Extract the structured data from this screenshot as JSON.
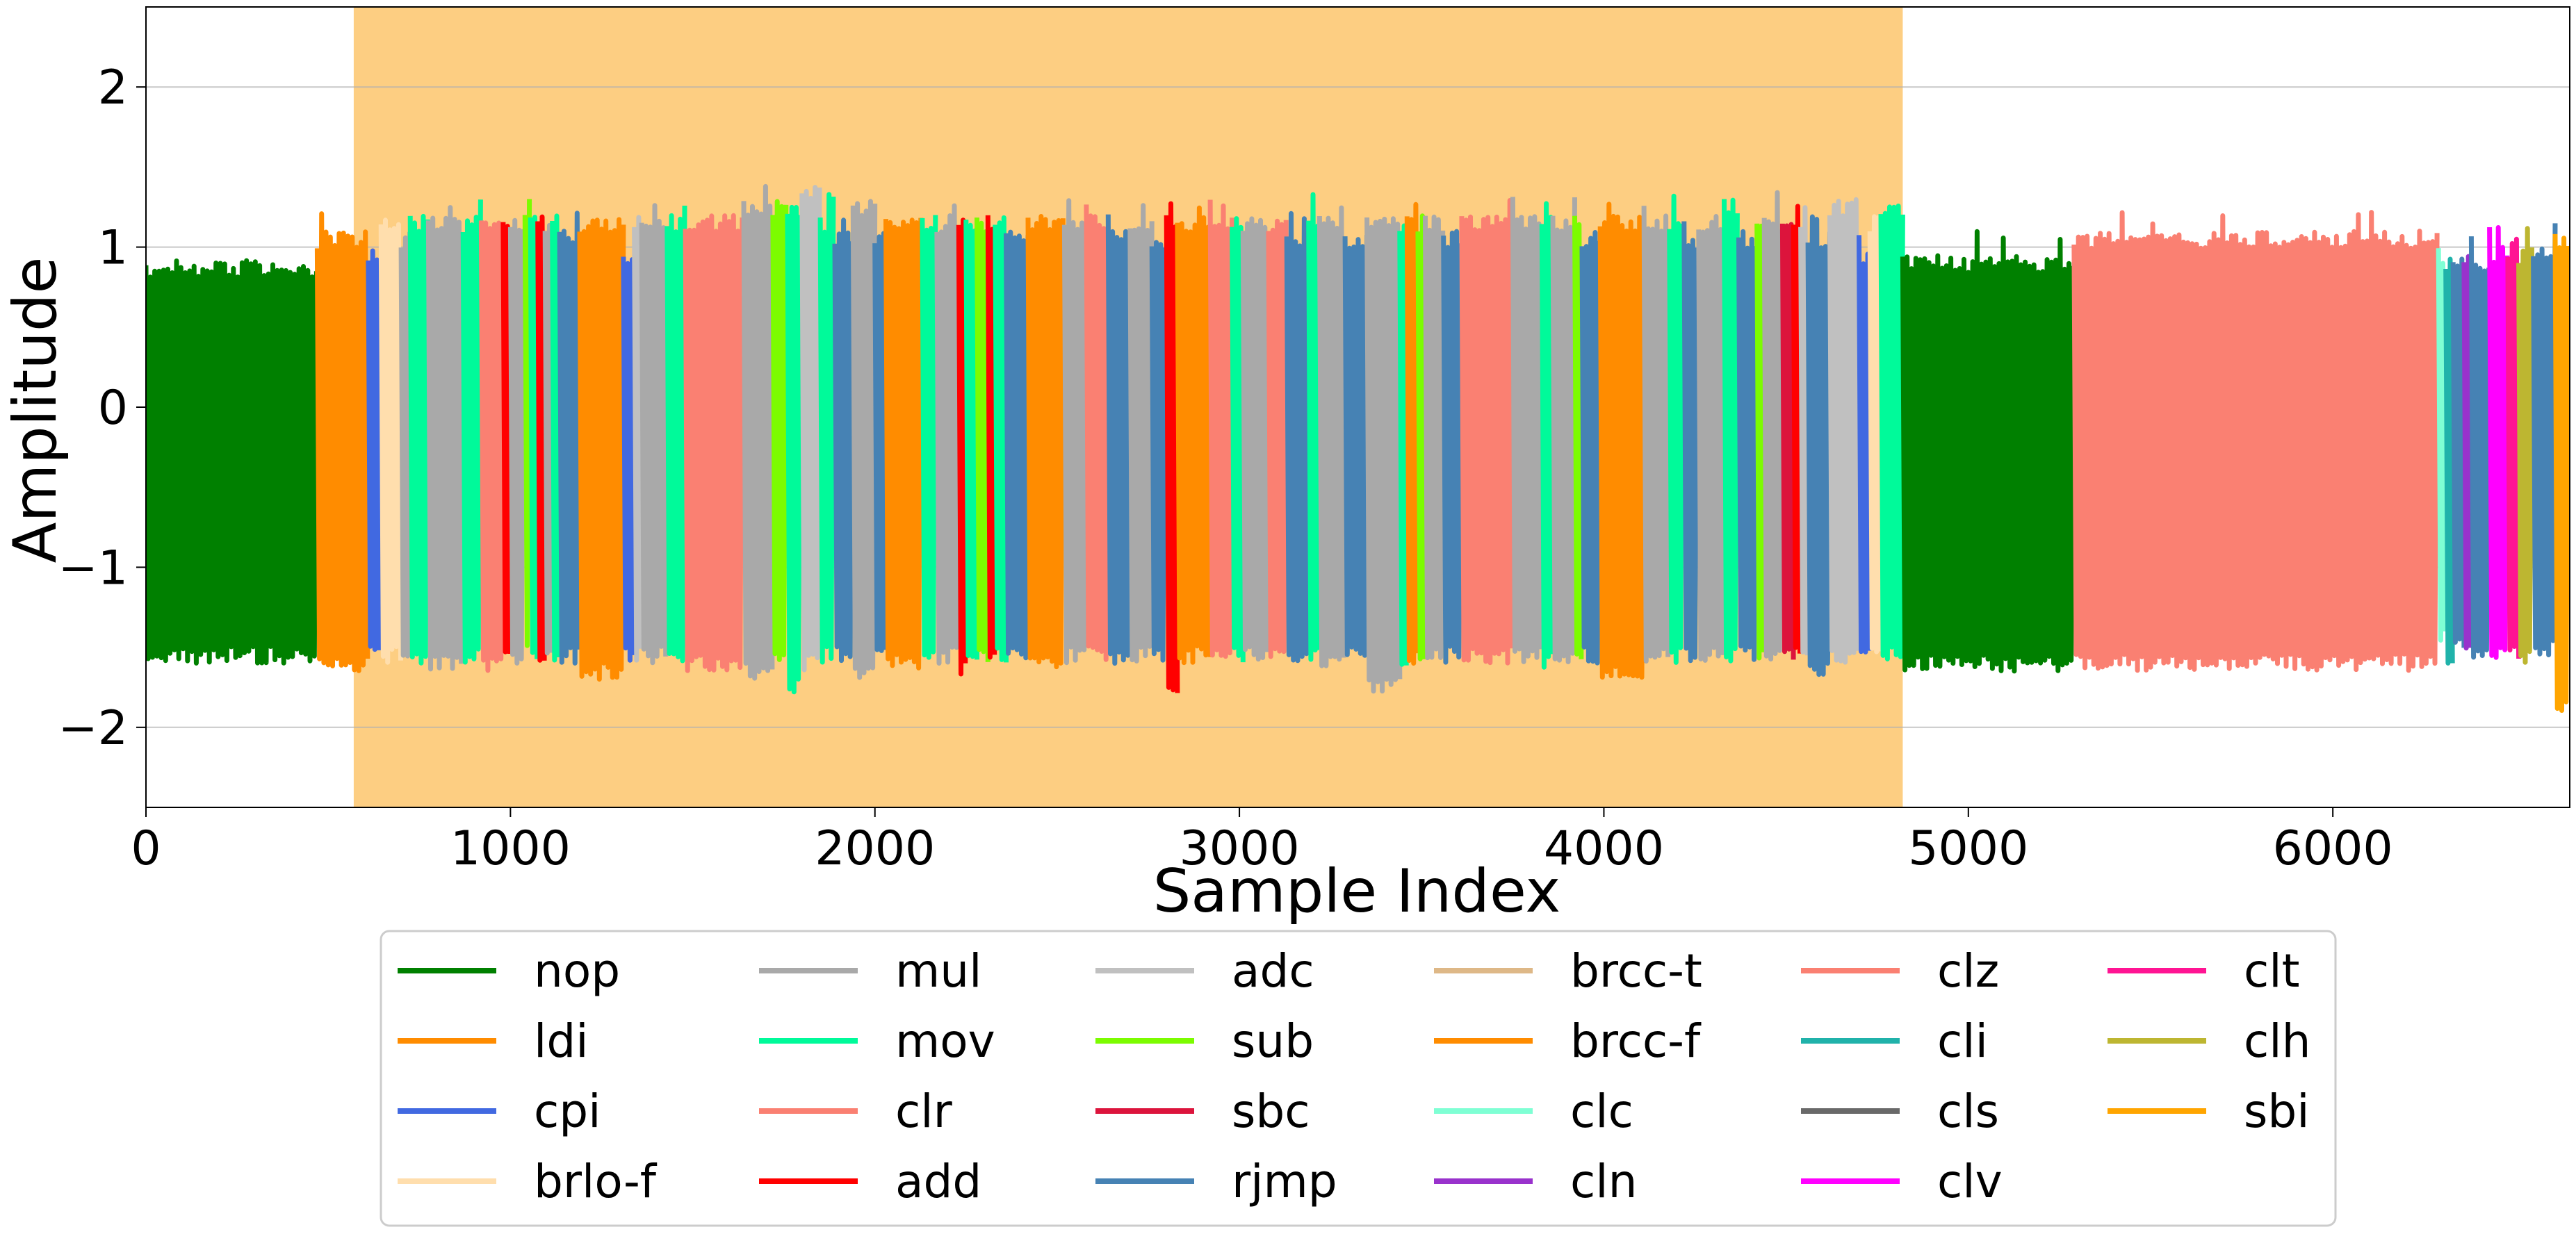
{
  "chart_data": {
    "type": "line",
    "title": "",
    "xlabel": "Sample Index",
    "ylabel": "Amplitude",
    "xlim": [
      0,
      6650
    ],
    "ylim": [
      -2.5,
      2.5
    ],
    "xticks": [
      0,
      1000,
      2000,
      3000,
      4000,
      5000,
      6000
    ],
    "yticks": [
      -2,
      -1,
      0,
      1,
      2
    ],
    "ytick_labels": [
      "−2",
      "−1",
      "0",
      "1",
      "2"
    ],
    "grid": "horizontal",
    "highlight_region": {
      "x_start": 570,
      "x_end": 4820,
      "color": "#FDCE82"
    },
    "legend_placement": "below plot, 6 columns",
    "series": [
      {
        "name": "nop",
        "color": "#008000"
      },
      {
        "name": "ldi",
        "color": "#FF8C00"
      },
      {
        "name": "cpi",
        "color": "#4169E1"
      },
      {
        "name": "brlo-f",
        "color": "#FFDEAD"
      },
      {
        "name": "mul",
        "color": "#A9A9A9"
      },
      {
        "name": "mov",
        "color": "#00FA9A"
      },
      {
        "name": "clr",
        "color": "#FA8072"
      },
      {
        "name": "add",
        "color": "#FF0000"
      },
      {
        "name": "adc",
        "color": "#C0C0C0"
      },
      {
        "name": "sub",
        "color": "#7CFC00"
      },
      {
        "name": "sbc",
        "color": "#DC143C"
      },
      {
        "name": "rjmp",
        "color": "#4682B4"
      },
      {
        "name": "brcc-t",
        "color": "#DEB887"
      },
      {
        "name": "brcc-f",
        "color": "#FF8C00"
      },
      {
        "name": "clc",
        "color": "#7FFFD4"
      },
      {
        "name": "cln",
        "color": "#9932CC"
      },
      {
        "name": "clz",
        "color": "#FA8072"
      },
      {
        "name": "cli",
        "color": "#20B2AA"
      },
      {
        "name": "cls",
        "color": "#696969"
      },
      {
        "name": "clv",
        "color": "#FF00FF"
      },
      {
        "name": "clt",
        "color": "#FF1493"
      },
      {
        "name": "clh",
        "color": "#BDB631"
      },
      {
        "name": "sbi",
        "color": "#FFA500"
      }
    ],
    "segments": [
      {
        "s": "nop",
        "x0": 0,
        "x1": 470,
        "lo": -1.6,
        "hi": 0.92
      },
      {
        "s": "ldi",
        "x0": 470,
        "x1": 610,
        "lo": -1.65,
        "hi": 1.1
      },
      {
        "s": "cpi",
        "x0": 610,
        "x1": 645,
        "lo": -1.6,
        "hi": 1.0
      },
      {
        "s": "brlo-f",
        "x0": 645,
        "x1": 700,
        "lo": -1.6,
        "hi": 1.2
      },
      {
        "s": "mul",
        "x0": 700,
        "x1": 725,
        "lo": -1.6,
        "hi": 1.1
      },
      {
        "s": "mov",
        "x0": 725,
        "x1": 775,
        "lo": -1.6,
        "hi": 1.2
      },
      {
        "s": "mul",
        "x0": 775,
        "x1": 870,
        "lo": -1.65,
        "hi": 1.2
      },
      {
        "s": "mov",
        "x0": 870,
        "x1": 920,
        "lo": -1.6,
        "hi": 1.2
      },
      {
        "s": "clr",
        "x0": 920,
        "x1": 980,
        "lo": -1.65,
        "hi": 1.2
      },
      {
        "s": "add",
        "x0": 980,
        "x1": 1000,
        "lo": -1.6,
        "hi": 1.2
      },
      {
        "s": "mul",
        "x0": 1000,
        "x1": 1040,
        "lo": -1.6,
        "hi": 1.2
      },
      {
        "s": "sub",
        "x0": 1040,
        "x1": 1055,
        "lo": -1.55,
        "hi": 1.3
      },
      {
        "s": "mov",
        "x0": 1055,
        "x1": 1075,
        "lo": -1.6,
        "hi": 1.2
      },
      {
        "s": "add",
        "x0": 1075,
        "x1": 1095,
        "lo": -1.6,
        "hi": 1.2
      },
      {
        "s": "mul",
        "x0": 1095,
        "x1": 1115,
        "lo": -1.6,
        "hi": 1.2
      },
      {
        "s": "mov",
        "x0": 1115,
        "x1": 1135,
        "lo": -1.6,
        "hi": 1.2
      },
      {
        "s": "rjmp",
        "x0": 1135,
        "x1": 1190,
        "lo": -1.6,
        "hi": 1.1
      },
      {
        "s": "ldi",
        "x0": 1190,
        "x1": 1310,
        "lo": -1.7,
        "hi": 1.2
      },
      {
        "s": "cpi",
        "x0": 1310,
        "x1": 1340,
        "lo": -1.6,
        "hi": 1.0
      },
      {
        "s": "adc",
        "x0": 1340,
        "x1": 1360,
        "lo": -1.6,
        "hi": 1.2
      },
      {
        "s": "mul",
        "x0": 1360,
        "x1": 1430,
        "lo": -1.6,
        "hi": 1.2
      },
      {
        "s": "mov",
        "x0": 1430,
        "x1": 1480,
        "lo": -1.6,
        "hi": 1.2
      },
      {
        "s": "clr",
        "x0": 1480,
        "x1": 1640,
        "lo": -1.65,
        "hi": 1.2
      },
      {
        "s": "mul",
        "x0": 1640,
        "x1": 1720,
        "lo": -1.7,
        "hi": 1.3
      },
      {
        "s": "sub",
        "x0": 1720,
        "x1": 1760,
        "lo": -1.6,
        "hi": 1.3
      },
      {
        "s": "mov",
        "x0": 1760,
        "x1": 1800,
        "lo": -1.8,
        "hi": 1.3
      },
      {
        "s": "adc",
        "x0": 1800,
        "x1": 1850,
        "lo": -1.65,
        "hi": 1.4
      },
      {
        "s": "mov",
        "x0": 1850,
        "x1": 1890,
        "lo": -1.6,
        "hi": 1.2
      },
      {
        "s": "rjmp",
        "x0": 1890,
        "x1": 1940,
        "lo": -1.6,
        "hi": 1.1
      },
      {
        "s": "mul",
        "x0": 1940,
        "x1": 2000,
        "lo": -1.7,
        "hi": 1.3
      },
      {
        "s": "rjmp",
        "x0": 2000,
        "x1": 2030,
        "lo": -1.6,
        "hi": 1.1
      },
      {
        "s": "ldi",
        "x0": 2030,
        "x1": 2130,
        "lo": -1.65,
        "hi": 1.2
      },
      {
        "s": "mov",
        "x0": 2130,
        "x1": 2170,
        "lo": -1.6,
        "hi": 1.2
      },
      {
        "s": "mul",
        "x0": 2170,
        "x1": 2230,
        "lo": -1.6,
        "hi": 1.2
      },
      {
        "s": "add",
        "x0": 2230,
        "x1": 2250,
        "lo": -1.7,
        "hi": 1.2
      },
      {
        "s": "mov",
        "x0": 2250,
        "x1": 2280,
        "lo": -1.6,
        "hi": 1.2
      },
      {
        "s": "sub",
        "x0": 2280,
        "x1": 2310,
        "lo": -1.6,
        "hi": 1.2
      },
      {
        "s": "add",
        "x0": 2310,
        "x1": 2330,
        "lo": -1.6,
        "hi": 1.2
      },
      {
        "s": "mov",
        "x0": 2330,
        "x1": 2360,
        "lo": -1.6,
        "hi": 1.2
      },
      {
        "s": "rjmp",
        "x0": 2360,
        "x1": 2420,
        "lo": -1.6,
        "hi": 1.1
      },
      {
        "s": "ldi",
        "x0": 2420,
        "x1": 2520,
        "lo": -1.65,
        "hi": 1.2
      },
      {
        "s": "mul",
        "x0": 2520,
        "x1": 2580,
        "lo": -1.6,
        "hi": 1.2
      },
      {
        "s": "clr",
        "x0": 2580,
        "x1": 2640,
        "lo": -1.6,
        "hi": 1.2
      },
      {
        "s": "rjmp",
        "x0": 2640,
        "x1": 2700,
        "lo": -1.6,
        "hi": 1.1
      },
      {
        "s": "mul",
        "x0": 2700,
        "x1": 2760,
        "lo": -1.6,
        "hi": 1.2
      },
      {
        "s": "rjmp",
        "x0": 2760,
        "x1": 2800,
        "lo": -1.6,
        "hi": 1.1
      },
      {
        "s": "add",
        "x0": 2800,
        "x1": 2830,
        "lo": -1.8,
        "hi": 1.2
      },
      {
        "s": "ldi",
        "x0": 2830,
        "x1": 2920,
        "lo": -1.6,
        "hi": 1.2
      },
      {
        "s": "clr",
        "x0": 2920,
        "x1": 2980,
        "lo": -1.6,
        "hi": 1.2
      },
      {
        "s": "mov",
        "x0": 2980,
        "x1": 3010,
        "lo": -1.6,
        "hi": 1.2
      },
      {
        "s": "mul",
        "x0": 3010,
        "x1": 3080,
        "lo": -1.6,
        "hi": 1.2
      },
      {
        "s": "clr",
        "x0": 3080,
        "x1": 3130,
        "lo": -1.6,
        "hi": 1.2
      },
      {
        "s": "rjmp",
        "x0": 3130,
        "x1": 3190,
        "lo": -1.6,
        "hi": 1.1
      },
      {
        "s": "mov",
        "x0": 3190,
        "x1": 3220,
        "lo": -1.6,
        "hi": 1.2
      },
      {
        "s": "mul",
        "x0": 3220,
        "x1": 3290,
        "lo": -1.65,
        "hi": 1.2
      },
      {
        "s": "rjmp",
        "x0": 3290,
        "x1": 3350,
        "lo": -1.6,
        "hi": 1.1
      },
      {
        "s": "mul",
        "x0": 3350,
        "x1": 3440,
        "lo": -1.8,
        "hi": 1.2
      },
      {
        "s": "mov",
        "x0": 3440,
        "x1": 3460,
        "lo": -1.7,
        "hi": 1.2
      },
      {
        "s": "ldi",
        "x0": 3460,
        "x1": 3490,
        "lo": -1.6,
        "hi": 1.2
      },
      {
        "s": "sub",
        "x0": 3490,
        "x1": 3510,
        "lo": -1.6,
        "hi": 1.2
      },
      {
        "s": "mul",
        "x0": 3510,
        "x1": 3560,
        "lo": -1.6,
        "hi": 1.2
      },
      {
        "s": "rjmp",
        "x0": 3560,
        "x1": 3610,
        "lo": -1.6,
        "hi": 1.1
      },
      {
        "s": "clr",
        "x0": 3610,
        "x1": 3750,
        "lo": -1.6,
        "hi": 1.2
      },
      {
        "s": "mul",
        "x0": 3750,
        "x1": 3830,
        "lo": -1.6,
        "hi": 1.2
      },
      {
        "s": "mov",
        "x0": 3830,
        "x1": 3860,
        "lo": -1.65,
        "hi": 1.2
      },
      {
        "s": "mul",
        "x0": 3860,
        "x1": 3920,
        "lo": -1.6,
        "hi": 1.2
      },
      {
        "s": "sub",
        "x0": 3920,
        "x1": 3940,
        "lo": -1.6,
        "hi": 1.2
      },
      {
        "s": "rjmp",
        "x0": 3940,
        "x1": 3990,
        "lo": -1.6,
        "hi": 1.1
      },
      {
        "s": "ldi",
        "x0": 3990,
        "x1": 4110,
        "lo": -1.7,
        "hi": 1.2
      },
      {
        "s": "mul",
        "x0": 4110,
        "x1": 4180,
        "lo": -1.6,
        "hi": 1.2
      },
      {
        "s": "mov",
        "x0": 4180,
        "x1": 4220,
        "lo": -1.6,
        "hi": 1.2
      },
      {
        "s": "rjmp",
        "x0": 4220,
        "x1": 4260,
        "lo": -1.6,
        "hi": 1.1
      },
      {
        "s": "mul",
        "x0": 4260,
        "x1": 4330,
        "lo": -1.6,
        "hi": 1.2
      },
      {
        "s": "mov",
        "x0": 4330,
        "x1": 4370,
        "lo": -1.6,
        "hi": 1.3
      },
      {
        "s": "rjmp",
        "x0": 4370,
        "x1": 4420,
        "lo": -1.6,
        "hi": 1.1
      },
      {
        "s": "sub",
        "x0": 4420,
        "x1": 4440,
        "lo": -1.6,
        "hi": 1.2
      },
      {
        "s": "mul",
        "x0": 4440,
        "x1": 4490,
        "lo": -1.6,
        "hi": 1.2
      },
      {
        "s": "sbc",
        "x0": 4490,
        "x1": 4520,
        "lo": -1.6,
        "hi": 1.2
      },
      {
        "s": "add",
        "x0": 4520,
        "x1": 4540,
        "lo": -1.6,
        "hi": 1.2
      },
      {
        "s": "adc",
        "x0": 4540,
        "x1": 4560,
        "lo": -1.6,
        "hi": 1.2
      },
      {
        "s": "rjmp",
        "x0": 4560,
        "x1": 4620,
        "lo": -1.7,
        "hi": 1.1
      },
      {
        "s": "adc",
        "x0": 4620,
        "x1": 4700,
        "lo": -1.6,
        "hi": 1.3
      },
      {
        "s": "cpi",
        "x0": 4700,
        "x1": 4730,
        "lo": -1.6,
        "hi": 1.0
      },
      {
        "s": "brlo-f",
        "x0": 4730,
        "x1": 4760,
        "lo": -1.6,
        "hi": 1.2
      },
      {
        "s": "mov",
        "x0": 4760,
        "x1": 4820,
        "lo": -1.6,
        "hi": 1.3
      },
      {
        "s": "nop",
        "x0": 4820,
        "x1": 5290,
        "lo": -1.65,
        "hi": 0.95
      },
      {
        "s": "clz",
        "x0": 5290,
        "x1": 6290,
        "lo": -1.65,
        "hi": 1.1
      },
      {
        "s": "clc",
        "x0": 6290,
        "x1": 6310,
        "lo": -1.5,
        "hi": 1.0
      },
      {
        "s": "cli",
        "x0": 6310,
        "x1": 6330,
        "lo": -1.6,
        "hi": 0.95
      },
      {
        "s": "rjmp",
        "x0": 6330,
        "x1": 6360,
        "lo": -1.55,
        "hi": 0.95
      },
      {
        "s": "cln",
        "x0": 6360,
        "x1": 6380,
        "lo": -1.6,
        "hi": 0.95
      },
      {
        "s": "rjmp",
        "x0": 6380,
        "x1": 6430,
        "lo": -1.6,
        "hi": 0.95
      },
      {
        "s": "clv",
        "x0": 6430,
        "x1": 6480,
        "lo": -1.6,
        "hi": 1.0
      },
      {
        "s": "clt",
        "x0": 6480,
        "x1": 6510,
        "lo": -1.6,
        "hi": 0.95
      },
      {
        "s": "clh",
        "x0": 6510,
        "x1": 6550,
        "lo": -1.6,
        "hi": 1.0
      },
      {
        "s": "rjmp",
        "x0": 6550,
        "x1": 6610,
        "lo": -1.55,
        "hi": 1.0
      },
      {
        "s": "sbi",
        "x0": 6610,
        "x1": 6650,
        "lo": -1.9,
        "hi": 1.1
      }
    ]
  }
}
